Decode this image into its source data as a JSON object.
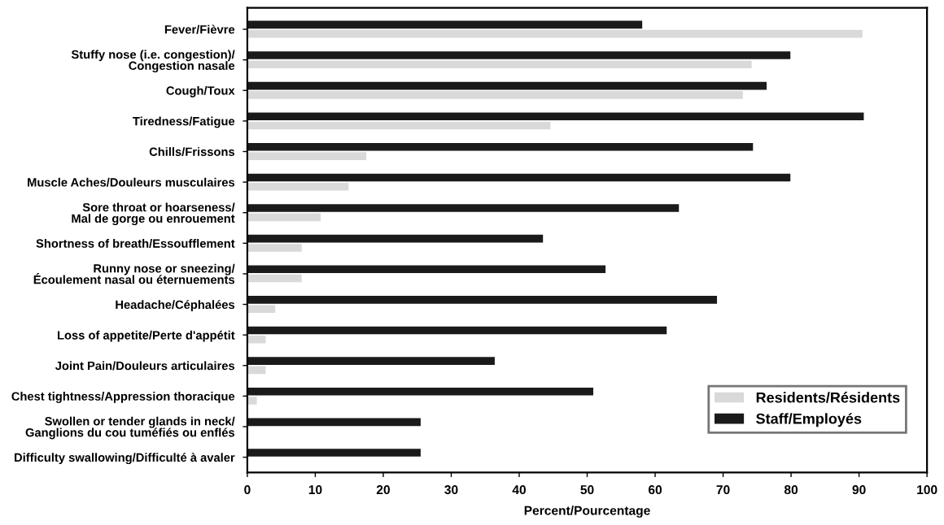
{
  "chart_data": {
    "type": "bar",
    "orientation": "horizontal",
    "xlabel": "Percent/Pourcentage",
    "categories": [
      "Fever/Fièvre",
      "Stuffy nose (i.e. congestion)/\nCongestion nasale",
      "Cough/Toux",
      "Tiredness/Fatigue",
      "Chills/Frissons",
      "Muscle Aches/Douleurs musculaires",
      "Sore throat or hoarseness/\nMal de gorge ou enrouement",
      "Shortness of breath/Essoufflement",
      "Runny nose or sneezing/\nÉcoulement nasal ou éternuements",
      "Headache/Céphalées",
      "Loss of appetite/Perte d'appétit",
      "Joint Pain/Douleurs articulaires",
      "Chest tightness/Appression thoracique",
      "Swollen or tender glands in neck/\nGanglions du cou tuméfiés ou enflés",
      "Difficulty swallowing/Difficulté à avaler"
    ],
    "series": [
      {
        "name": "Residents/Résidents",
        "color": "#d9d9d9",
        "values": [
          90.5,
          74.2,
          72.9,
          44.6,
          17.5,
          14.9,
          10.8,
          8.0,
          8.0,
          4.1,
          2.7,
          2.7,
          1.4,
          0,
          0
        ]
      },
      {
        "name": "Staff/Employés",
        "color": "#1a1a1a",
        "values": [
          58.1,
          79.9,
          76.4,
          90.7,
          74.4,
          79.9,
          63.5,
          43.5,
          52.7,
          69.1,
          61.7,
          36.4,
          50.9,
          25.5,
          25.5
        ]
      }
    ],
    "xlim": [
      0,
      100
    ],
    "xticks": [
      0,
      10,
      20,
      30,
      40,
      50,
      60,
      70,
      80,
      90,
      100
    ],
    "grid": false,
    "legend": "bottom right"
  }
}
